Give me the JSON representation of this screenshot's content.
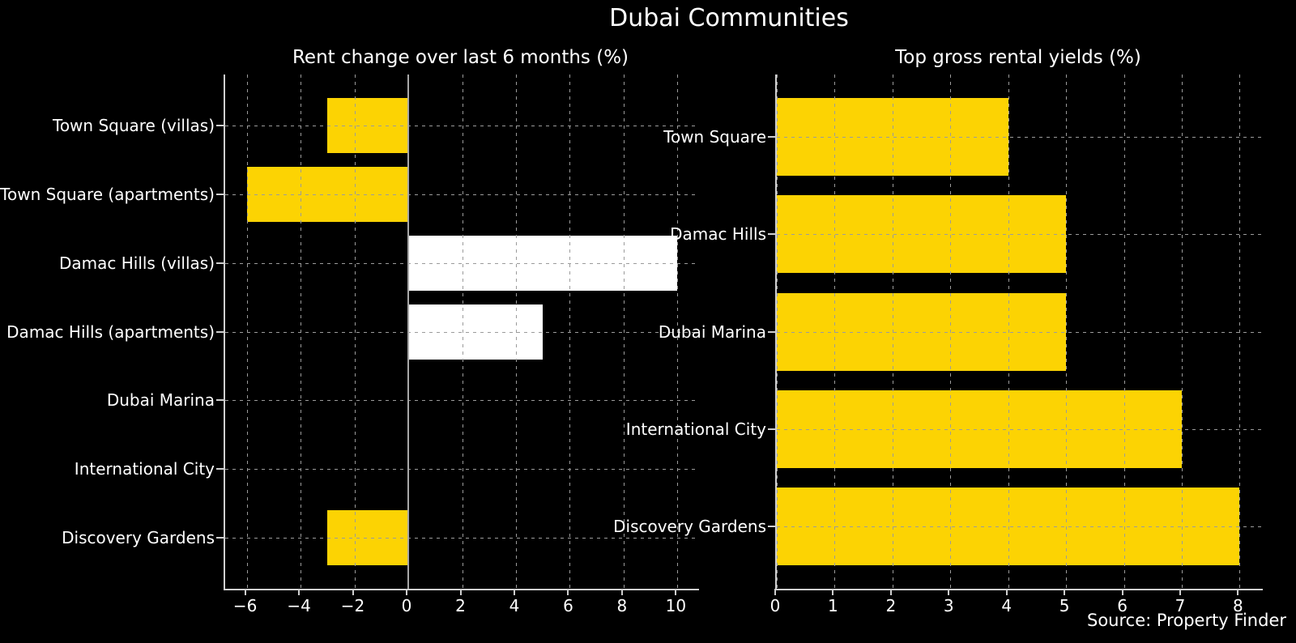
{
  "figure": {
    "title": "Dubai Communities",
    "source": "Source: Property Finder"
  },
  "colors": {
    "background": "#000000",
    "text": "#ffffff",
    "bar_yellow": "#fcd303",
    "bar_white": "#ffffff",
    "grid": "#9b9b9b",
    "spine": "#cfcfcf",
    "zero_line": "#a8a8a8"
  },
  "chart_data": [
    {
      "type": "bar",
      "orientation": "horizontal",
      "title": "Rent change over last 6 months (%)",
      "categories": [
        "Town Square (villas)",
        "Town Square (apartments)",
        "Damac Hills (villas)",
        "Damac Hills (apartments)",
        "Dubai Marina",
        "International City",
        "Discovery Gardens"
      ],
      "values": [
        -3,
        -6,
        10,
        5,
        0,
        0,
        -3
      ],
      "bar_colors": [
        "#fcd303",
        "#fcd303",
        "#ffffff",
        "#ffffff",
        "#fcd303",
        "#fcd303",
        "#fcd303"
      ],
      "xlim": [
        -6.8,
        10.8
      ],
      "xticks": [
        -6,
        -4,
        -2,
        0,
        2,
        4,
        6,
        8,
        10
      ],
      "grid": "dashed",
      "zero_line": true,
      "legend": false
    },
    {
      "type": "bar",
      "orientation": "horizontal",
      "title": "Top gross rental yields (%)",
      "categories": [
        "Town Square",
        "Damac Hills",
        "Dubai Marina",
        "International City",
        "Discovery Gardens"
      ],
      "values": [
        4,
        5,
        5,
        7,
        8
      ],
      "bar_colors": [
        "#fcd303",
        "#fcd303",
        "#fcd303",
        "#fcd303",
        "#fcd303"
      ],
      "xlim": [
        0,
        8.4
      ],
      "xticks": [
        0,
        1,
        2,
        3,
        4,
        5,
        6,
        7,
        8
      ],
      "grid": "dashed",
      "zero_line": false,
      "legend": false
    }
  ]
}
